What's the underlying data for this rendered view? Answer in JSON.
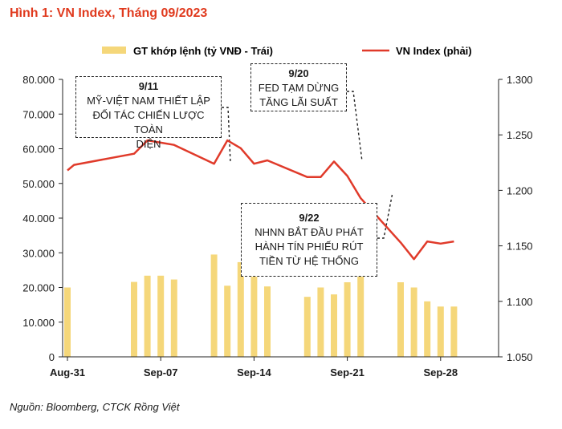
{
  "figure": {
    "title": "Hình 1: VN Index, Tháng 09/2023",
    "title_color": "#e03a1e",
    "source": "Nguồn: Bloomberg, CTCK Rồng Việt"
  },
  "chart_data": {
    "type": "bar+line",
    "title": "Hình 1: VN Index, Tháng 09/2023",
    "x_ticks": [
      "Aug-31",
      "Sep-07",
      "Sep-14",
      "Sep-21",
      "Sep-28"
    ],
    "x_tick_days": [
      0,
      7,
      14,
      21,
      28
    ],
    "left_axis": {
      "ylim": [
        0,
        80000
      ],
      "ticks": [
        "0",
        "10.000",
        "20.000",
        "30.000",
        "40.000",
        "50.000",
        "60.000",
        "70.000",
        "80.000"
      ]
    },
    "right_axis": {
      "ylim": [
        1050,
        1300
      ],
      "ticks": [
        "1.050",
        "1.100",
        "1.150",
        "1.200",
        "1.250",
        "1.300"
      ]
    },
    "legend": {
      "placement": "top",
      "bar_label": "GT khớp lệnh (tỷ VNĐ - Trái)",
      "line_label": "VN Index (phải)"
    },
    "colors": {
      "bar": "#f5d77a",
      "line": "#e03a2a"
    },
    "bars": [
      {
        "day": 0,
        "value": 20000
      },
      {
        "day": 5,
        "value": 21600
      },
      {
        "day": 6,
        "value": 23400
      },
      {
        "day": 7,
        "value": 23400
      },
      {
        "day": 8,
        "value": 22300
      },
      {
        "day": 11,
        "value": 29500
      },
      {
        "day": 12,
        "value": 20500
      },
      {
        "day": 13,
        "value": 27300
      },
      {
        "day": 14,
        "value": 25000
      },
      {
        "day": 15,
        "value": 20300
      },
      {
        "day": 18,
        "value": 17300
      },
      {
        "day": 19,
        "value": 20000
      },
      {
        "day": 20,
        "value": 18000
      },
      {
        "day": 21,
        "value": 21500
      },
      {
        "day": 22,
        "value": 30000
      },
      {
        "day": 25,
        "value": 21500
      },
      {
        "day": 26,
        "value": 20000
      },
      {
        "day": 27,
        "value": 16000
      },
      {
        "day": 28,
        "value": 14500
      },
      {
        "day": 29,
        "value": 14500
      }
    ],
    "line": [
      {
        "day": 0,
        "value": 1218
      },
      {
        "day": 0.5,
        "value": 1223
      },
      {
        "day": 5,
        "value": 1233
      },
      {
        "day": 6,
        "value": 1245
      },
      {
        "day": 7,
        "value": 1243
      },
      {
        "day": 8,
        "value": 1241
      },
      {
        "day": 11,
        "value": 1224
      },
      {
        "day": 12,
        "value": 1245
      },
      {
        "day": 13,
        "value": 1238
      },
      {
        "day": 14,
        "value": 1224
      },
      {
        "day": 15,
        "value": 1227
      },
      {
        "day": 18,
        "value": 1212
      },
      {
        "day": 19,
        "value": 1212
      },
      {
        "day": 20,
        "value": 1226
      },
      {
        "day": 21,
        "value": 1213
      },
      {
        "day": 22,
        "value": 1193
      },
      {
        "day": 25,
        "value": 1153
      },
      {
        "day": 26,
        "value": 1138
      },
      {
        "day": 27,
        "value": 1154
      },
      {
        "day": 28,
        "value": 1152
      },
      {
        "day": 29,
        "value": 1154
      }
    ],
    "annotations": [
      {
        "date": "9/11",
        "lines": [
          "MỸ-VIỆT NAM THIẾT LẬP",
          "ĐỐI TÁC CHIẾN LƯỢC TOÀN",
          "DIỆN"
        ]
      },
      {
        "date": "9/20",
        "lines": [
          "FED TẠM DỪNG",
          "TĂNG LÃI SUẤT"
        ]
      },
      {
        "date": "9/22",
        "lines": [
          "NHNN BẮT ĐẦU PHÁT",
          "HÀNH TÍN PHIẾU RÚT",
          "TIỀN TỪ HỆ THỐNG"
        ]
      }
    ]
  }
}
